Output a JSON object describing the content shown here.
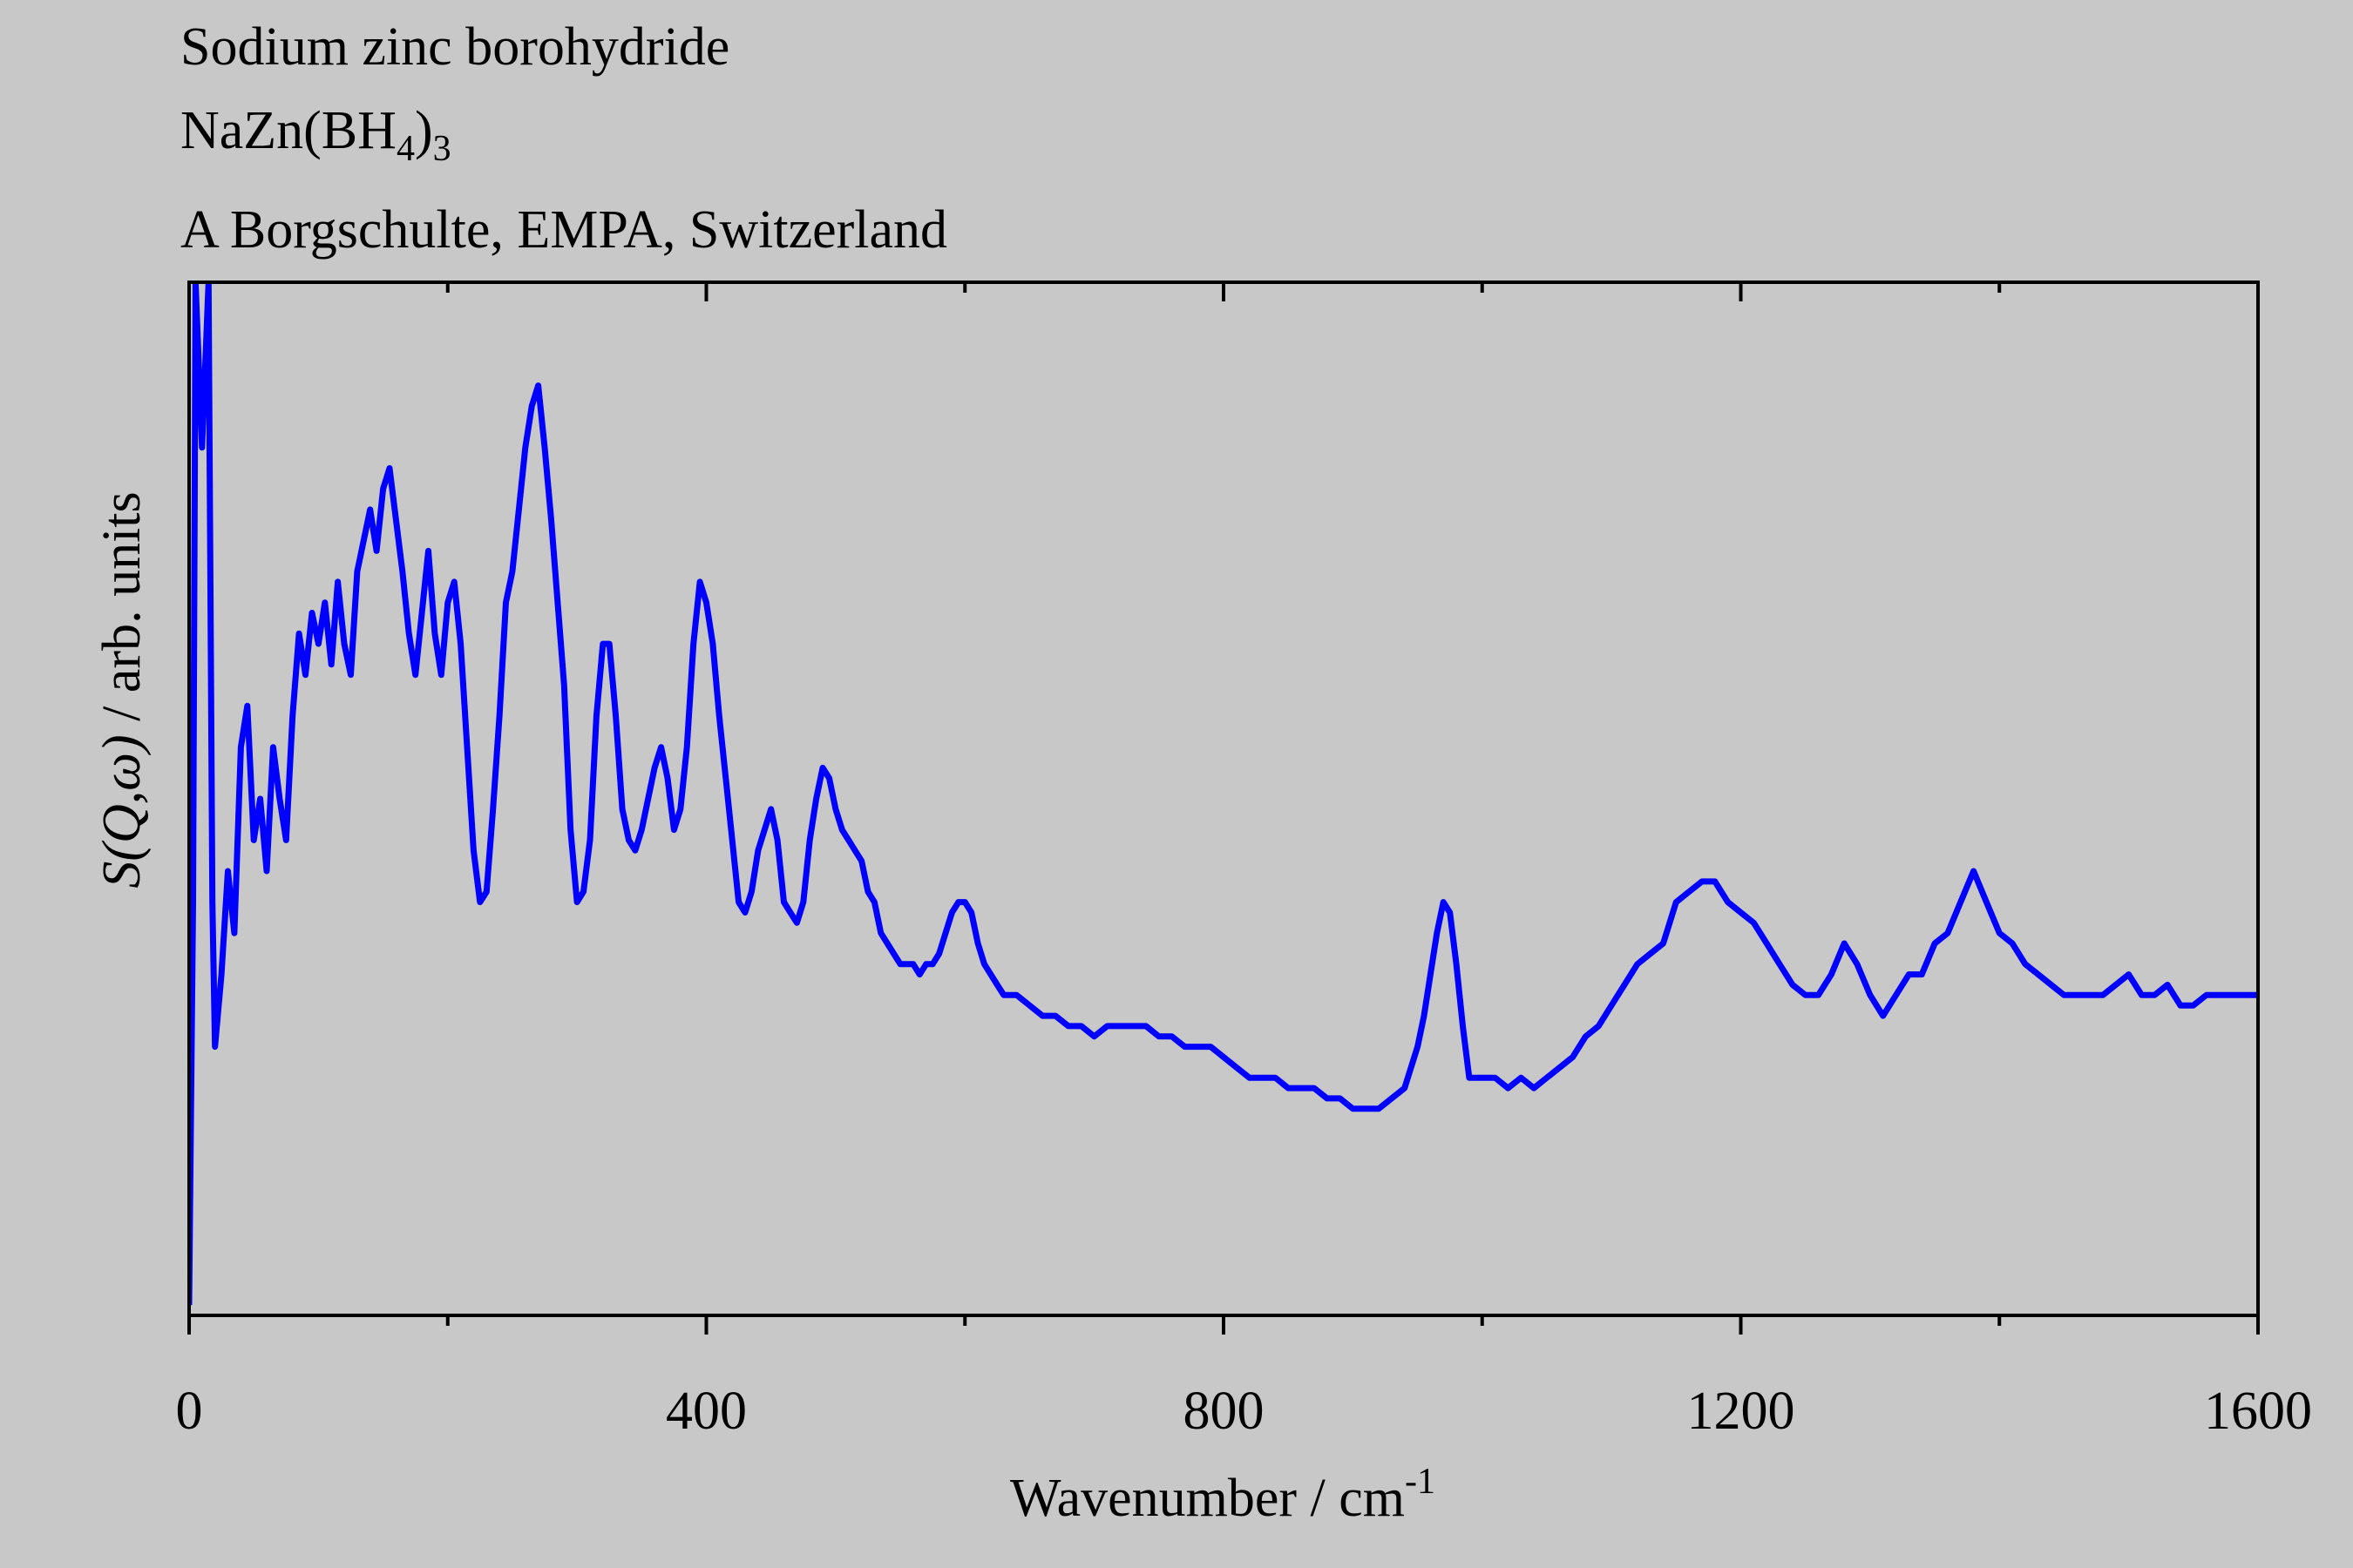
{
  "chart_data": {
    "type": "line",
    "title": "Sodium zinc borohydride",
    "formula": [
      "NaZn(BH",
      "4",
      ")",
      "3"
    ],
    "credit": "A Borgschulte, EMPA, Switzerland",
    "x_label": [
      "Wavenumber / cm",
      "-1"
    ],
    "y_label": [
      "S(Q,ω)",
      " / arb. units"
    ],
    "xlim": [
      0,
      1600
    ],
    "xticks": [
      0,
      400,
      800,
      1200,
      1600
    ],
    "minor_xticks": [
      200,
      600,
      1000,
      1400
    ],
    "ylim": [
      0,
      100
    ],
    "series": [
      {
        "color": "#0000ff",
        "x": [
          0,
          3,
          5,
          10,
          15,
          18,
          20,
          25,
          30,
          35,
          40,
          45,
          50,
          55,
          60,
          65,
          70,
          75,
          80,
          85,
          90,
          95,
          100,
          105,
          110,
          115,
          120,
          125,
          130,
          135,
          140,
          145,
          150,
          155,
          160,
          165,
          170,
          175,
          180,
          185,
          190,
          195,
          200,
          205,
          210,
          215,
          220,
          225,
          230,
          235,
          240,
          245,
          250,
          255,
          260,
          265,
          270,
          275,
          280,
          285,
          290,
          295,
          300,
          305,
          310,
          315,
          320,
          325,
          330,
          335,
          340,
          345,
          350,
          355,
          360,
          365,
          370,
          375,
          380,
          385,
          390,
          395,
          400,
          405,
          410,
          415,
          420,
          425,
          430,
          435,
          440,
          445,
          450,
          455,
          460,
          465,
          470,
          475,
          480,
          485,
          490,
          495,
          500,
          505,
          510,
          515,
          520,
          525,
          530,
          535,
          540,
          545,
          550,
          555,
          560,
          565,
          570,
          575,
          580,
          585,
          590,
          595,
          600,
          605,
          610,
          615,
          620,
          625,
          630,
          640,
          650,
          660,
          670,
          680,
          690,
          700,
          710,
          720,
          730,
          740,
          750,
          760,
          770,
          780,
          790,
          800,
          810,
          820,
          830,
          840,
          850,
          860,
          870,
          880,
          890,
          900,
          910,
          920,
          930,
          940,
          950,
          955,
          960,
          965,
          970,
          975,
          980,
          985,
          990,
          1000,
          1010,
          1020,
          1030,
          1040,
          1050,
          1060,
          1070,
          1080,
          1090,
          1100,
          1110,
          1120,
          1130,
          1140,
          1150,
          1160,
          1170,
          1180,
          1190,
          1200,
          1210,
          1220,
          1230,
          1240,
          1250,
          1260,
          1270,
          1280,
          1290,
          1300,
          1310,
          1320,
          1330,
          1340,
          1350,
          1360,
          1370,
          1380,
          1390,
          1400,
          1410,
          1420,
          1430,
          1440,
          1450,
          1460,
          1470,
          1480,
          1490,
          1500,
          1510,
          1520,
          1530,
          1540,
          1550,
          1560,
          1580,
          1600
        ],
        "values": [
          1,
          40,
          100,
          84,
          100,
          40,
          26,
          33,
          43,
          37,
          55,
          59,
          46,
          50,
          43,
          55,
          50,
          46,
          58,
          66,
          62,
          68,
          65,
          69,
          63,
          71,
          65,
          62,
          72,
          75,
          78,
          74,
          80,
          82,
          77,
          72,
          66,
          62,
          68,
          74,
          66,
          62,
          69,
          71,
          65,
          55,
          45,
          40,
          41,
          49,
          58,
          69,
          72,
          78,
          84,
          88,
          90,
          84,
          77,
          69,
          61,
          47,
          40,
          41,
          46,
          58,
          65,
          65,
          58,
          49,
          46,
          45,
          47,
          50,
          53,
          55,
          52,
          47,
          49,
          55,
          65,
          71,
          69,
          65,
          58,
          52,
          46,
          40,
          39,
          41,
          45,
          47,
          49,
          46,
          40,
          39,
          38,
          40,
          46,
          50,
          53,
          52,
          49,
          47,
          46,
          45,
          44,
          41,
          40,
          37,
          36,
          35,
          34,
          34,
          34,
          33,
          34,
          34,
          35,
          37,
          39,
          40,
          40,
          39,
          36,
          34,
          33,
          32,
          31,
          31,
          30,
          29,
          29,
          28,
          28,
          27,
          28,
          28,
          28,
          28,
          27,
          27,
          26,
          26,
          26,
          25,
          24,
          23,
          23,
          23,
          22,
          22,
          22,
          21,
          21,
          20,
          20,
          20,
          21,
          22,
          26,
          29,
          33,
          37,
          40,
          39,
          34,
          28,
          23,
          23,
          23,
          22,
          23,
          22,
          23,
          24,
          25,
          27,
          28,
          30,
          32,
          34,
          35,
          36,
          40,
          41,
          42,
          42,
          40,
          39,
          38,
          36,
          34,
          32,
          31,
          31,
          33,
          36,
          34,
          31,
          29,
          31,
          33,
          33,
          36,
          37,
          40,
          43,
          40,
          37,
          36,
          34,
          33,
          32,
          31,
          31,
          31,
          31,
          32,
          33,
          31,
          31,
          32,
          30,
          30,
          31,
          31,
          31
        ]
      }
    ]
  }
}
